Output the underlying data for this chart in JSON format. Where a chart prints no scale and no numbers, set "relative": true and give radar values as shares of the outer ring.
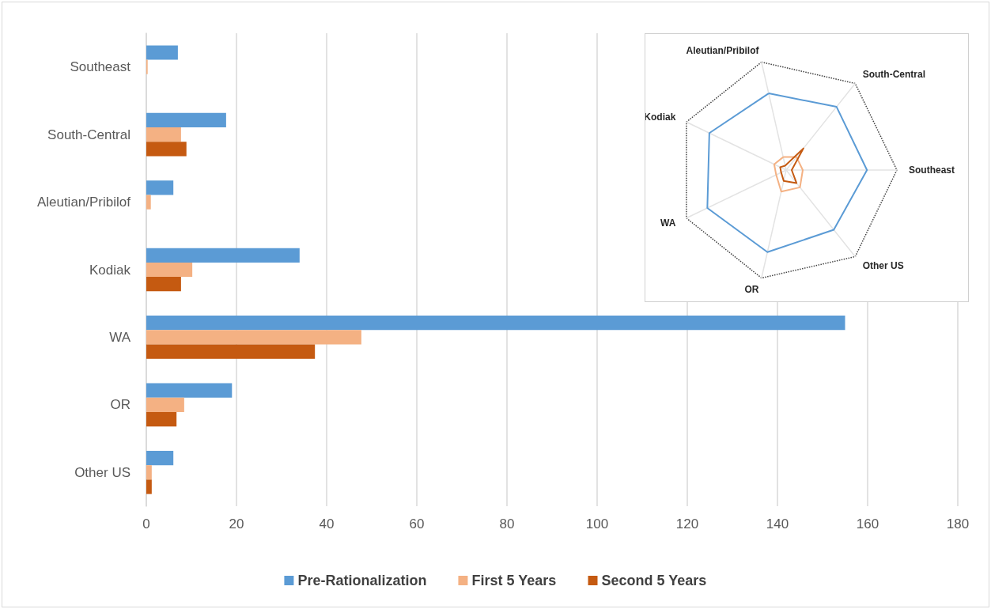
{
  "chart_data": [
    {
      "type": "bar",
      "orientation": "horizontal",
      "categories": [
        "Southeast",
        "South-Central",
        "Aleutian/Pribilof",
        "Kodiak",
        "WA",
        "OR",
        "Other US"
      ],
      "series": [
        {
          "name": "Pre-Rationalization",
          "color": "#5b9bd5",
          "values": [
            7,
            17.7,
            6,
            34,
            155,
            19,
            6
          ]
        },
        {
          "name": "First 5 Years",
          "color": "#f4b183",
          "values": [
            0.3,
            7.7,
            1,
            10.2,
            47.7,
            8.4,
            1.2
          ]
        },
        {
          "name": "Second 5 Years",
          "color": "#c55a11",
          "values": [
            0,
            8.9,
            0,
            7.7,
            37.4,
            6.7,
            1.2
          ]
        }
      ],
      "xlim": [
        0,
        180
      ],
      "xticks": [
        0,
        20,
        40,
        60,
        80,
        100,
        120,
        140,
        160,
        180
      ],
      "grid": "x",
      "legend": "bottom"
    },
    {
      "type": "radar",
      "relative": true,
      "categories": [
        "Aleutian/Pribilof",
        "South-Central",
        "Southeast",
        "Other US",
        "OR",
        "WA",
        "Kodiak"
      ],
      "series": [
        {
          "color": "#5b9bd5",
          "line_style": "solid",
          "values": [
            0.71,
            0.73,
            0.73,
            0.69,
            0.76,
            0.79,
            0.77
          ]
        },
        {
          "color": "#f4b183",
          "line_style": "solid",
          "values": [
            0.12,
            0.15,
            0.15,
            0.2,
            0.2,
            0.1,
            0.12
          ]
        },
        {
          "color": "#c55a11",
          "line_style": "solid",
          "values": [
            0.04,
            0.25,
            0.05,
            0.15,
            0.1,
            0.05,
            0.06
          ]
        }
      ]
    }
  ]
}
